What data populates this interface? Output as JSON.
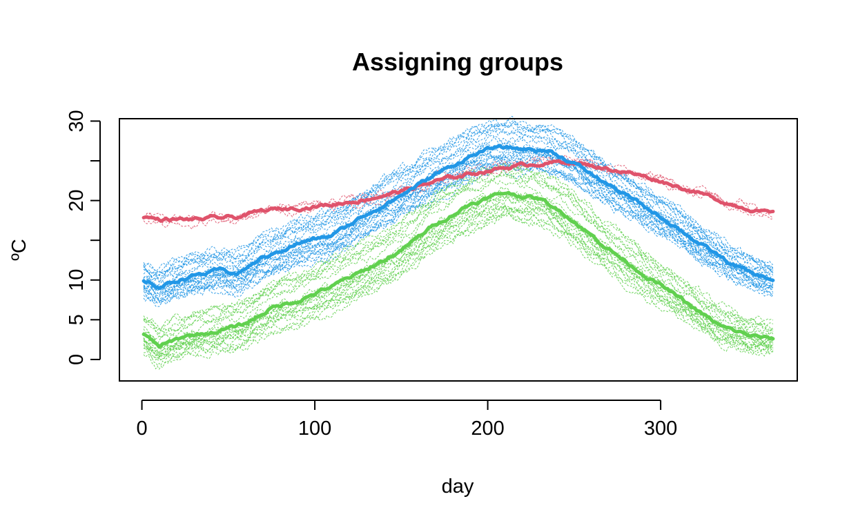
{
  "chart_data": {
    "type": "line",
    "title": "Assigning groups",
    "xlabel": "day",
    "ylabel": "ºC",
    "xlim": [
      -13,
      379
    ],
    "ylim": [
      -2.7,
      30.3
    ],
    "x_ticks": [
      0,
      100,
      200,
      300
    ],
    "y_ticks": [
      0,
      5,
      10,
      20,
      30
    ],
    "y_ticks_unlabeled": [
      15,
      25
    ],
    "grid": false,
    "legend": "none",
    "x_range": [
      1,
      365
    ],
    "series": [
      {
        "group": "red",
        "color": "#DF536B",
        "mean_points": [
          [
            1,
            18
          ],
          [
            10,
            17.6
          ],
          [
            30,
            17.6
          ],
          [
            55,
            17.9
          ],
          [
            70,
            18.7
          ],
          [
            90,
            19.1
          ],
          [
            110,
            19.5
          ],
          [
            130,
            20.2
          ],
          [
            150,
            21.2
          ],
          [
            170,
            22.4
          ],
          [
            190,
            23.4
          ],
          [
            210,
            24.2
          ],
          [
            230,
            24.7
          ],
          [
            245,
            24.9
          ],
          [
            260,
            24.4
          ],
          [
            280,
            23.6
          ],
          [
            300,
            22.5
          ],
          [
            320,
            21.1
          ],
          [
            340,
            19.6
          ],
          [
            365,
            18.3
          ]
        ],
        "member_count": 3,
        "member_spread": 0.5
      },
      {
        "group": "blue",
        "color": "#2297E6",
        "mean_points": [
          [
            1,
            10
          ],
          [
            10,
            9.1
          ],
          [
            25,
            10.3
          ],
          [
            45,
            11.2
          ],
          [
            55,
            10.8
          ],
          [
            70,
            12.8
          ],
          [
            90,
            14.6
          ],
          [
            110,
            15.6
          ],
          [
            130,
            18.3
          ],
          [
            150,
            20.7
          ],
          [
            170,
            23.3
          ],
          [
            190,
            25.6
          ],
          [
            205,
            26.7
          ],
          [
            220,
            26.5
          ],
          [
            235,
            26.3
          ],
          [
            250,
            24.7
          ],
          [
            265,
            22.6
          ],
          [
            280,
            20.7
          ],
          [
            295,
            18.6
          ],
          [
            310,
            16.6
          ],
          [
            325,
            14.2
          ],
          [
            340,
            12.1
          ],
          [
            355,
            10.6
          ],
          [
            365,
            10
          ]
        ],
        "member_count": 26,
        "member_spread": 3.2
      },
      {
        "group": "green",
        "color": "#61D04F",
        "mean_points": [
          [
            1,
            3.1
          ],
          [
            10,
            1.6
          ],
          [
            25,
            2.9
          ],
          [
            45,
            3.6
          ],
          [
            60,
            4.5
          ],
          [
            75,
            6.5
          ],
          [
            90,
            7.4
          ],
          [
            110,
            9.2
          ],
          [
            130,
            11.3
          ],
          [
            150,
            13.7
          ],
          [
            170,
            17.1
          ],
          [
            190,
            19.6
          ],
          [
            210,
            21
          ],
          [
            230,
            20.2
          ],
          [
            245,
            18.3
          ],
          [
            260,
            15.6
          ],
          [
            275,
            13.1
          ],
          [
            290,
            10.8
          ],
          [
            305,
            8.6
          ],
          [
            320,
            6.3
          ],
          [
            335,
            4.1
          ],
          [
            350,
            3.1
          ],
          [
            365,
            2.5
          ]
        ],
        "member_count": 22,
        "member_spread": 3.6
      }
    ]
  }
}
